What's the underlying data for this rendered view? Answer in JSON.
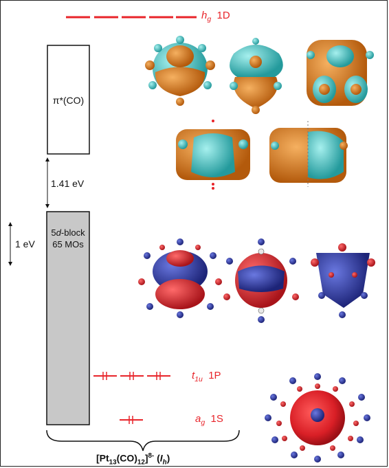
{
  "levels": {
    "hg": {
      "symbol": "h",
      "sub": "g",
      "shell": "1D"
    },
    "t1u": {
      "symbol": "t",
      "sub": "1u",
      "shell": "1P"
    },
    "ag": {
      "symbol": "a",
      "sub": "g",
      "shell": "1S"
    }
  },
  "blocks": {
    "pi_star": {
      "label": "π*(CO)"
    },
    "d_block": {
      "line1_prefix": "5",
      "line1_italic": "d",
      "line1_suffix": "-block",
      "line2": "65 MOs"
    }
  },
  "gap": {
    "label": "1.41 eV"
  },
  "scale": {
    "label": "1 eV"
  },
  "cluster": {
    "prefix": "[Pt",
    "sub1": "13",
    "mid": "(CO)",
    "sub2": "12",
    "close": "]",
    "charge": "8-",
    "sym_open": " (",
    "sym": "I",
    "sym_sub": "h",
    "sym_close": ")"
  },
  "colors": {
    "level": "#e8242a",
    "orange": "#d97a1c",
    "cyan": "#3fc7c7",
    "blue": "#2e3aa8",
    "red": "#d9242a",
    "block_fill": "#c8c8c8"
  }
}
